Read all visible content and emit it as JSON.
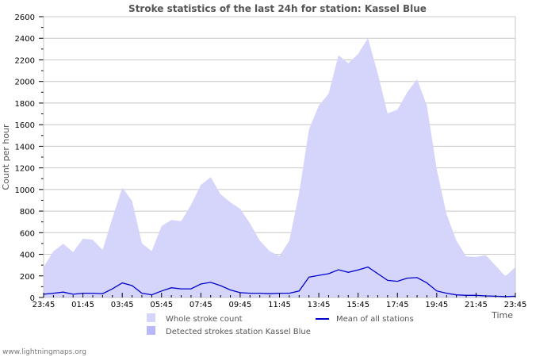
{
  "chart_data": {
    "type": "area",
    "title": "Stroke statistics of the last 24h for station: Kassel Blue",
    "xlabel": "Time",
    "ylabel": "Count per hour",
    "ylim": [
      0,
      2600
    ],
    "y_ticks": [
      0,
      200,
      400,
      600,
      800,
      1000,
      1200,
      1400,
      1600,
      1800,
      2000,
      2200,
      2400,
      2600
    ],
    "x_tick_labels": [
      "23:45",
      "01:45",
      "03:45",
      "05:45",
      "07:45",
      "09:45",
      "11:45",
      "13:45",
      "15:45",
      "17:45",
      "19:45",
      "21:45",
      "23:45"
    ],
    "grid": true,
    "legend_position": "bottom",
    "x": [
      "23:45",
      "00:15",
      "00:45",
      "01:15",
      "01:45",
      "02:15",
      "02:45",
      "03:15",
      "03:45",
      "04:15",
      "04:45",
      "05:15",
      "05:45",
      "06:15",
      "06:45",
      "07:15",
      "07:45",
      "08:15",
      "08:45",
      "09:15",
      "09:45",
      "10:15",
      "10:45",
      "11:15",
      "11:45",
      "12:15",
      "12:45",
      "13:15",
      "13:45",
      "14:15",
      "14:45",
      "15:15",
      "15:45",
      "16:15",
      "16:45",
      "17:15",
      "17:45",
      "18:15",
      "18:45",
      "19:15",
      "19:45",
      "20:15",
      "20:45",
      "21:15",
      "21:45",
      "22:15",
      "22:45",
      "23:15",
      "23:45"
    ],
    "series": [
      {
        "name": "Whole stroke count",
        "color": "#d5d5fb",
        "kind": "area",
        "values": [
          282,
          429,
          498,
          421,
          544,
          534,
          441,
          735,
          1017,
          895,
          502,
          429,
          662,
          718,
          706,
          858,
          1042,
          1115,
          956,
          882,
          821,
          686,
          527,
          429,
          385,
          527,
          968,
          1556,
          1777,
          1887,
          2243,
          2169,
          2255,
          2402,
          2071,
          1704,
          1740,
          1899,
          2022,
          1777,
          1189,
          772,
          527,
          380,
          375,
          392,
          294,
          196,
          282
        ]
      },
      {
        "name": "Detected strokes station Kassel Blue",
        "color": "#b8b8fa",
        "kind": "area",
        "values": [
          0,
          0,
          0,
          0,
          0,
          0,
          0,
          0,
          0,
          0,
          0,
          0,
          0,
          0,
          0,
          0,
          0,
          0,
          0,
          0,
          0,
          0,
          0,
          0,
          0,
          0,
          0,
          0,
          0,
          0,
          0,
          0,
          0,
          0,
          0,
          0,
          0,
          0,
          0,
          0,
          0,
          0,
          0,
          0,
          0,
          0,
          0,
          0,
          0
        ]
      },
      {
        "name": "Mean of all stations",
        "color": "#0000cc",
        "kind": "line",
        "values": [
          30,
          40,
          50,
          30,
          40,
          40,
          35,
          80,
          135,
          110,
          40,
          25,
          60,
          90,
          80,
          80,
          125,
          140,
          110,
          70,
          45,
          40,
          40,
          35,
          40,
          40,
          60,
          189,
          205,
          220,
          257,
          233,
          255,
          282,
          220,
          159,
          150,
          179,
          184,
          135,
          61,
          40,
          24,
          20,
          20,
          15,
          12,
          8,
          12
        ]
      }
    ]
  },
  "legend": {
    "whole_label": "Whole stroke count",
    "detected_label": "Detected strokes station Kassel Blue",
    "mean_label": "Mean of all stations"
  },
  "footer": {
    "credit": "www.lightningmaps.org"
  }
}
